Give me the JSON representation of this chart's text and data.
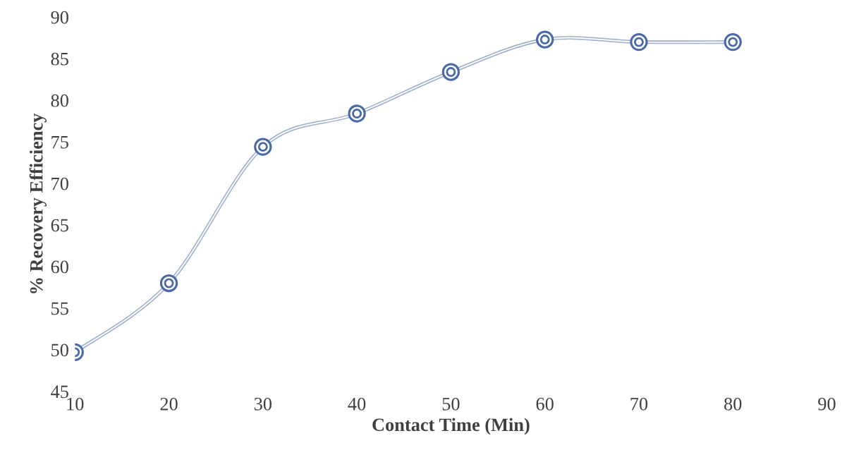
{
  "chart_data": {
    "type": "line",
    "xlabel": "Contact Time (Min)",
    "ylabel": "% Recovery Efficiency",
    "x": [
      10,
      20,
      30,
      40,
      50,
      60,
      70,
      80
    ],
    "series": [
      {
        "color": "#4a69a8",
        "values": [
          49.7,
          58.0,
          74.4,
          78.4,
          83.4,
          87.3,
          87.0,
          87.0
        ]
      }
    ],
    "xlim": [
      10,
      90
    ],
    "ylim": [
      45,
      90
    ],
    "xticks": [
      10,
      20,
      30,
      40,
      50,
      60,
      70,
      80,
      90
    ],
    "yticks": [
      45,
      50,
      55,
      60,
      65,
      70,
      75,
      80,
      85,
      90
    ],
    "marker": "circle",
    "grid": false,
    "legend": false
  }
}
